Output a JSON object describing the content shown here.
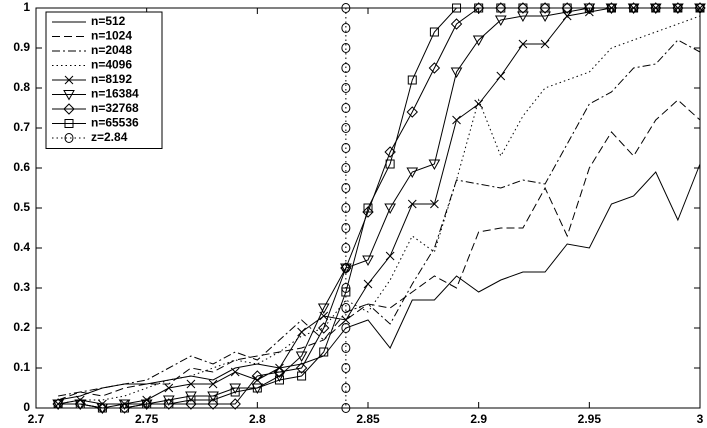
{
  "chart_data": {
    "type": "line",
    "x": [
      2.71,
      2.72,
      2.73,
      2.74,
      2.75,
      2.76,
      2.77,
      2.78,
      2.79,
      2.8,
      2.81,
      2.82,
      2.83,
      2.84,
      2.85,
      2.86,
      2.87,
      2.88,
      2.89,
      2.9,
      2.91,
      2.92,
      2.93,
      2.94,
      2.95,
      2.96,
      2.97,
      2.98,
      2.99,
      3.0
    ],
    "series": [
      {
        "name": "n=512",
        "color": "#000000",
        "dash": "solid",
        "marker": "none",
        "values": [
          0.02,
          0.03,
          0.05,
          0.06,
          0.06,
          0.07,
          0.08,
          0.07,
          0.1,
          0.11,
          0.1,
          0.11,
          0.13,
          0.2,
          0.22,
          0.15,
          0.27,
          0.27,
          0.33,
          0.29,
          0.32,
          0.34,
          0.34,
          0.41,
          0.4,
          0.51,
          0.53,
          0.59,
          0.47,
          0.61
        ]
      },
      {
        "name": "n=1024",
        "color": "#000000",
        "dash": "dashed",
        "marker": "none",
        "values": [
          0.02,
          0.04,
          0.03,
          0.05,
          0.06,
          0.06,
          0.1,
          0.09,
          0.12,
          0.13,
          0.14,
          0.15,
          0.17,
          0.22,
          0.26,
          0.25,
          0.29,
          0.33,
          0.3,
          0.44,
          0.45,
          0.45,
          0.55,
          0.43,
          0.6,
          0.69,
          0.63,
          0.72,
          0.77,
          0.72
        ]
      },
      {
        "name": "n=2048",
        "color": "#000000",
        "dash": "dashdot",
        "marker": "none",
        "values": [
          0.03,
          0.04,
          0.05,
          0.06,
          0.07,
          0.1,
          0.13,
          0.11,
          0.14,
          0.12,
          0.17,
          0.22,
          0.17,
          0.24,
          0.26,
          0.21,
          0.31,
          0.4,
          0.57,
          0.56,
          0.55,
          0.57,
          0.56,
          0.66,
          0.76,
          0.79,
          0.85,
          0.86,
          0.92,
          0.89
        ]
      },
      {
        "name": "n=4096",
        "color": "#000000",
        "dash": "dotted",
        "marker": "none",
        "values": [
          0.01,
          0.02,
          0.02,
          0.03,
          0.05,
          0.07,
          0.08,
          0.1,
          0.12,
          0.11,
          0.14,
          0.18,
          0.2,
          0.27,
          0.24,
          0.32,
          0.43,
          0.39,
          0.57,
          0.77,
          0.63,
          0.73,
          0.8,
          0.82,
          0.84,
          0.9,
          0.92,
          0.94,
          0.96,
          0.98
        ]
      },
      {
        "name": "n=8192",
        "color": "#000000",
        "dash": "solid",
        "marker": "x",
        "values": [
          0.01,
          0.02,
          0.01,
          0.01,
          0.02,
          0.05,
          0.06,
          0.06,
          0.09,
          0.07,
          0.1,
          0.19,
          0.23,
          0.22,
          0.31,
          0.38,
          0.51,
          0.51,
          0.72,
          0.76,
          0.83,
          0.91,
          0.91,
          0.98,
          0.99,
          1,
          1,
          1,
          1,
          1
        ]
      },
      {
        "name": "n=16384",
        "color": "#000000",
        "dash": "solid",
        "marker": "triangle-down",
        "values": [
          0.01,
          0.01,
          0,
          0.01,
          0.01,
          0.02,
          0.03,
          0.03,
          0.05,
          0.05,
          0.08,
          0.13,
          0.25,
          0.35,
          0.37,
          0.5,
          0.59,
          0.61,
          0.84,
          0.92,
          0.97,
          0.98,
          0.98,
          0.99,
          1,
          1,
          1,
          1,
          1,
          1
        ]
      },
      {
        "name": "n=32768",
        "color": "#000000",
        "dash": "solid",
        "marker": "diamond",
        "values": [
          0.01,
          0.01,
          0,
          0,
          0.01,
          0.01,
          0.01,
          0.01,
          0.01,
          0.08,
          0.09,
          0.1,
          0.2,
          0.35,
          0.49,
          0.64,
          0.74,
          0.85,
          0.96,
          1,
          1,
          1,
          1,
          1,
          1,
          1,
          1,
          1,
          1,
          1
        ]
      },
      {
        "name": "n=65536",
        "color": "#000000",
        "dash": "solid",
        "marker": "square",
        "values": [
          0.01,
          0.01,
          0,
          0,
          0.01,
          0.01,
          0.02,
          0.02,
          0.04,
          0.05,
          0.07,
          0.08,
          0.14,
          0.29,
          0.5,
          0.61,
          0.82,
          0.94,
          1,
          1,
          1,
          1,
          1,
          1,
          1,
          1,
          1,
          1,
          1,
          1
        ]
      }
    ],
    "vline": {
      "name": "z=2.84",
      "x": 2.84,
      "dash": "dotted",
      "marker": "circle",
      "marker_y": [
        0,
        0.05,
        0.1,
        0.15,
        0.2,
        0.25,
        0.3,
        0.35,
        0.4,
        0.45,
        0.5,
        0.55,
        0.6,
        0.65,
        0.7,
        0.75,
        0.8,
        0.85,
        0.9,
        0.95,
        1
      ]
    },
    "xlim": [
      2.7,
      3.0
    ],
    "xticks": [
      2.7,
      2.75,
      2.8,
      2.85,
      2.9,
      2.95,
      3
    ],
    "ylim": [
      0,
      1
    ],
    "yticks": [
      0,
      0.1,
      0.2,
      0.3,
      0.4,
      0.5,
      0.6,
      0.7,
      0.8,
      0.9,
      1
    ],
    "grid": false,
    "legend": "upper left"
  }
}
